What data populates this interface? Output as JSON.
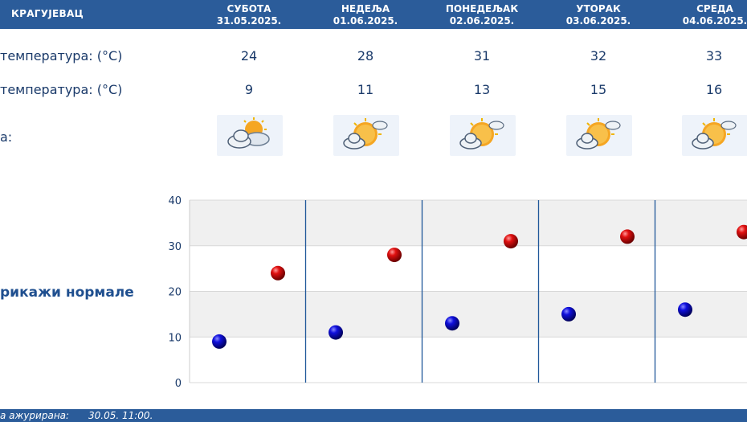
{
  "header": {
    "city": "КРАГУЈЕВАЦ",
    "days": [
      {
        "name": "СУБОТА",
        "date": "31.05.2025."
      },
      {
        "name": "НЕДЕЉА",
        "date": "01.06.2025."
      },
      {
        "name": "ПОНЕДЕЉАК",
        "date": "02.06.2025."
      },
      {
        "name": "УТОРАК",
        "date": "03.06.2025."
      },
      {
        "name": "СРЕДА",
        "date": "04.06.2025."
      }
    ]
  },
  "rows": {
    "max_label": "температура: (°C)",
    "min_label": "температура: (°C)",
    "icon_label": "а:",
    "max": [
      "24",
      "28",
      "31",
      "32",
      "33"
    ],
    "min": [
      "9",
      "11",
      "13",
      "15",
      "16"
    ],
    "icons": [
      "sun-behind-clouds-icon",
      "partly-sunny-icon",
      "partly-sunny-icon",
      "partly-sunny-icon",
      "partly-sunny-icon"
    ]
  },
  "normals_link": "рикажи нормале",
  "footer": {
    "label": "а ажурирана:",
    "value": "30.05. 11:00."
  },
  "colors": {
    "header_bg": "#2b5c9a",
    "max_marker": "#cc0000",
    "min_marker": "#0000cc",
    "divider": "#1f5799"
  },
  "chart_data": {
    "type": "scatter",
    "ylim": [
      0,
      40
    ],
    "yticks": [
      "0",
      "10",
      "20",
      "30",
      "40"
    ],
    "grid": true,
    "series": [
      {
        "values": [
          24,
          28,
          31,
          32,
          33
        ]
      },
      {
        "values": [
          9,
          11,
          13,
          15,
          16
        ]
      }
    ]
  }
}
